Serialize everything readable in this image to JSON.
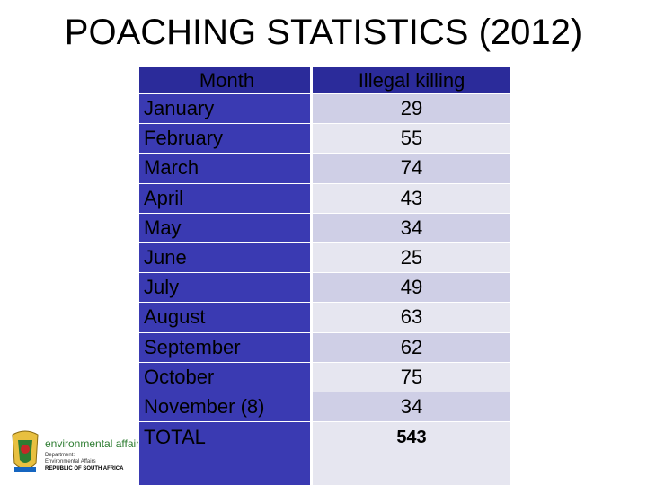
{
  "header": {
    "title": "POACHING STATISTICS (2012)"
  },
  "table": {
    "columns": [
      "Month",
      "Illegal killing"
    ],
    "rows": [
      [
        "January",
        29
      ],
      [
        "February",
        55
      ],
      [
        "March",
        74
      ],
      [
        "April",
        43
      ],
      [
        "May",
        34
      ],
      [
        "June",
        25
      ],
      [
        "July",
        49
      ],
      [
        "August",
        63
      ],
      [
        "September",
        62
      ],
      [
        "October",
        75
      ],
      [
        "November (8)",
        34
      ]
    ],
    "total": [
      "TOTAL",
      543
    ]
  },
  "logo": {
    "name": "environmental affairs",
    "line1": "Department:",
    "line2": "Environmental Affairs",
    "line3": "REPUBLIC OF SOUTH AFRICA"
  }
}
